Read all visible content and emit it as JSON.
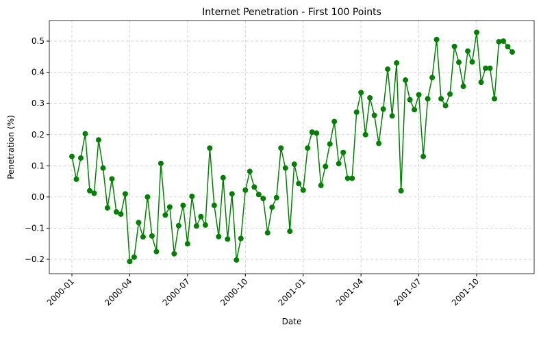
{
  "chart_data": {
    "type": "line",
    "title": "Internet Penetration - First 100 Points",
    "xlabel": "Date",
    "ylabel": "Penetration (%)",
    "categories": [
      "2000-01",
      null,
      null,
      null,
      null,
      null,
      null,
      null,
      null,
      null,
      null,
      null,
      null,
      "2000-04",
      null,
      null,
      null,
      null,
      null,
      null,
      null,
      null,
      null,
      null,
      null,
      null,
      "2000-07",
      null,
      null,
      null,
      null,
      null,
      null,
      null,
      null,
      null,
      null,
      null,
      null,
      "2000-10",
      null,
      null,
      null,
      null,
      null,
      null,
      null,
      null,
      null,
      null,
      null,
      null,
      "2001-01",
      null,
      null,
      null,
      null,
      null,
      null,
      null,
      null,
      null,
      null,
      null,
      null,
      "2001-04",
      null,
      null,
      null,
      null,
      null,
      null,
      null,
      null,
      null,
      null,
      null,
      null,
      "2001-07",
      null,
      null,
      null,
      null,
      null,
      null,
      null,
      null,
      null,
      null,
      null,
      null,
      "2001-10",
      null,
      null,
      null,
      null,
      null,
      null,
      null,
      null
    ],
    "values": [
      0.13,
      0.057,
      0.125,
      0.203,
      0.02,
      0.012,
      0.183,
      0.093,
      -0.035,
      0.058,
      -0.048,
      -0.055,
      0.01,
      -0.207,
      -0.193,
      -0.082,
      -0.128,
      0.0,
      -0.125,
      -0.175,
      0.108,
      -0.058,
      -0.032,
      -0.182,
      -0.092,
      -0.027,
      -0.15,
      0.002,
      -0.093,
      -0.063,
      -0.09,
      0.157,
      -0.027,
      -0.127,
      0.062,
      -0.135,
      0.01,
      -0.202,
      -0.133,
      0.022,
      0.082,
      0.032,
      0.008,
      -0.005,
      -0.115,
      -0.033,
      -0.002,
      0.157,
      0.093,
      -0.11,
      0.105,
      0.043,
      0.022,
      0.157,
      0.208,
      0.205,
      0.037,
      0.098,
      0.17,
      0.242,
      0.107,
      0.143,
      0.06,
      0.06,
      0.272,
      0.335,
      0.2,
      0.318,
      0.262,
      0.172,
      0.282,
      0.41,
      0.26,
      0.43,
      0.02,
      0.375,
      0.312,
      0.28,
      0.328,
      0.13,
      0.315,
      0.383,
      0.505,
      0.315,
      0.293,
      0.33,
      0.483,
      0.432,
      0.355,
      0.468,
      0.433,
      0.528,
      0.368,
      0.413,
      0.413,
      0.315,
      0.498,
      0.5,
      0.482,
      0.465
    ],
    "color": "#008000",
    "ylim": [
      -0.246,
      0.566
    ],
    "yticks": [
      {
        "value": -0.2,
        "label": "−0.2"
      },
      {
        "value": -0.1,
        "label": "−0.1"
      },
      {
        "value": 0,
        "label": "0.0"
      },
      0.1,
      0.2,
      0.3,
      0.4,
      0.5
    ],
    "grid": true
  }
}
